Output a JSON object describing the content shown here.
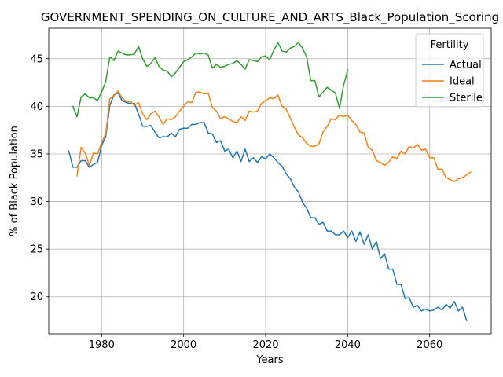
{
  "chart_data": {
    "type": "line",
    "title": "GOVERNMENT_SPENDING_ON_CULTURE_AND_ARTS_Black_Population_Scoring",
    "xlabel": "Years",
    "ylabel": "% of Black Population",
    "xlim": [
      1967.1,
      2075
    ],
    "ylim": [
      16.1,
      48.2
    ],
    "xticks": [
      1980,
      2000,
      2020,
      2040,
      2060
    ],
    "yticks": [
      20,
      25,
      30,
      35,
      40,
      45
    ],
    "grid": true,
    "legend": {
      "title": "Fertility",
      "placement": "top-right"
    },
    "series": [
      {
        "name": "Actual",
        "color": "#1f77b4",
        "x_start": 1972,
        "values": [
          35.3,
          33.6,
          33.6,
          34.3,
          34.3,
          33.6,
          33.9,
          34.1,
          35.9,
          36.8,
          40.1,
          41.2,
          41.4,
          40.6,
          40.4,
          40.3,
          40.3,
          39.2,
          37.9,
          37.9,
          38.0,
          37.3,
          36.7,
          36.8,
          36.8,
          37.2,
          36.8,
          37.6,
          37.7,
          37.7,
          38.1,
          38.1,
          38.3,
          38.3,
          37.2,
          37.1,
          36.2,
          36.4,
          35.3,
          35.5,
          34.6,
          35.3,
          34.2,
          35.5,
          34.2,
          34.6,
          34.1,
          34.7,
          34.5,
          35.0,
          34.6,
          34.1,
          33.7,
          32.9,
          32.4,
          31.5,
          31.0,
          29.9,
          29.3,
          28.3,
          28.3,
          27.6,
          27.8,
          26.9,
          26.9,
          26.5,
          26.5,
          26.9,
          26.2,
          26.9,
          25.8,
          26.8,
          25.5,
          26.5,
          25.0,
          25.8,
          24.0,
          24.5,
          22.9,
          22.9,
          21.3,
          21.3,
          19.8,
          19.9,
          18.9,
          19.1,
          18.5,
          18.7,
          18.5,
          18.6,
          18.9,
          18.6,
          19.2,
          18.8,
          19.5,
          18.5,
          18.9,
          17.5
        ]
      },
      {
        "name": "Ideal",
        "color": "#ff7f0e",
        "x_start": 1974,
        "values": [
          32.7,
          35.7,
          35.1,
          33.8,
          35.1,
          35.0,
          36.2,
          37.1,
          40.8,
          41.1,
          41.6,
          40.9,
          40.5,
          40.5,
          40.1,
          40.4,
          39.2,
          38.6,
          39.2,
          39.5,
          38.9,
          38.1,
          38.7,
          38.6,
          38.9,
          39.5,
          40.0,
          40.5,
          40.4,
          41.5,
          41.5,
          41.3,
          41.4,
          39.9,
          39.5,
          38.7,
          38.9,
          38.7,
          38.4,
          38.3,
          38.9,
          38.5,
          39.5,
          39.4,
          39.5,
          40.3,
          40.6,
          40.9,
          40.8,
          41.2,
          40.0,
          39.7,
          38.8,
          37.8,
          37.0,
          36.7,
          36.1,
          35.8,
          35.8,
          36.1,
          37.3,
          37.9,
          38.7,
          38.6,
          39.1,
          38.9,
          39.1,
          38.5,
          38.1,
          37.3,
          37.2,
          35.7,
          35.4,
          34.3,
          34.1,
          33.8,
          34.1,
          34.7,
          34.5,
          35.3,
          35.0,
          35.8,
          35.6,
          36.0,
          35.4,
          35.5,
          34.6,
          34.6,
          33.4,
          33.4,
          32.5,
          32.3,
          32.1,
          32.4,
          32.5,
          32.8,
          33.1
        ]
      },
      {
        "name": "Sterile",
        "color": "#2ca02c",
        "x_start": 1973,
        "values": [
          40.0,
          38.9,
          41.0,
          41.3,
          40.9,
          40.9,
          40.6,
          41.5,
          42.6,
          45.2,
          44.8,
          45.8,
          45.6,
          45.4,
          45.4,
          45.5,
          46.3,
          45.0,
          44.2,
          44.5,
          45.1,
          44.2,
          43.8,
          43.7,
          43.1,
          43.5,
          44.1,
          44.7,
          44.9,
          45.2,
          45.6,
          45.5,
          45.6,
          45.4,
          44.0,
          44.4,
          44.1,
          44.2,
          44.4,
          44.5,
          44.8,
          44.4,
          43.9,
          44.9,
          44.8,
          44.7,
          45.2,
          45.3,
          44.9,
          45.9,
          46.7,
          45.8,
          45.7,
          46.1,
          46.3,
          46.7,
          46.1,
          45.2,
          42.7,
          42.7,
          41.0,
          41.5,
          42.0,
          41.7,
          41.4,
          39.8,
          42.2,
          43.8
        ]
      }
    ]
  }
}
